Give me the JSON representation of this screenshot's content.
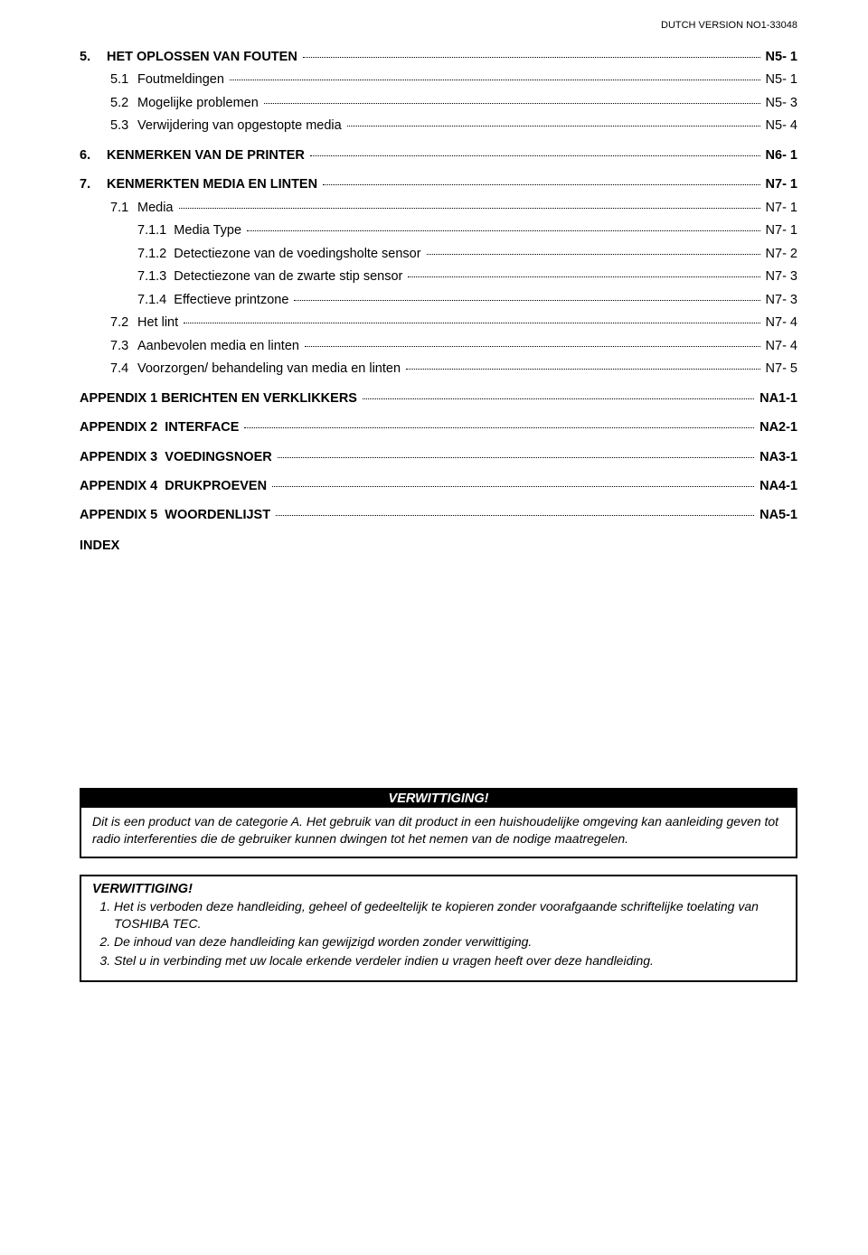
{
  "header_right": "DUTCH VERSION NO1-33048",
  "toc": [
    {
      "level": 0,
      "bold": true,
      "num": "5.",
      "title": "HET OPLOSSEN VAN FOUTEN",
      "page": "N5- 1",
      "gapBefore": true
    },
    {
      "level": 1,
      "bold": false,
      "num": "5.1",
      "title": "Foutmeldingen",
      "page": "N5- 1"
    },
    {
      "level": 1,
      "bold": false,
      "num": "5.2",
      "title": "Mogelijke problemen",
      "page": "N5- 3"
    },
    {
      "level": 1,
      "bold": false,
      "num": "5.3",
      "title": "Verwijdering van opgestopte media",
      "page": "N5- 4"
    },
    {
      "level": 0,
      "bold": true,
      "num": "6.",
      "title": "KENMERKEN VAN DE PRINTER",
      "page": "N6- 1",
      "gapBefore": true
    },
    {
      "level": 0,
      "bold": true,
      "num": "7.",
      "title": "KENMERKTEN MEDIA EN LINTEN",
      "page": "N7- 1",
      "gapBefore": true
    },
    {
      "level": 1,
      "bold": false,
      "num": "7.1",
      "title": "Media",
      "page": "N7- 1"
    },
    {
      "level": 2,
      "bold": false,
      "num": "",
      "title": "7.1.1  Media Type",
      "page": "N7- 1"
    },
    {
      "level": 2,
      "bold": false,
      "num": "",
      "title": "7.1.2  Detectiezone van de voedingsholte sensor",
      "page": "N7- 2"
    },
    {
      "level": 2,
      "bold": false,
      "num": "",
      "title": "7.1.3  Detectiezone van de zwarte stip sensor",
      "page": "N7- 3"
    },
    {
      "level": 2,
      "bold": false,
      "num": "",
      "title": "7.1.4  Effectieve printzone",
      "page": "N7- 3"
    },
    {
      "level": 1,
      "bold": false,
      "num": "7.2",
      "title": "Het lint",
      "page": "N7- 4"
    },
    {
      "level": 1,
      "bold": false,
      "num": "7.3",
      "title": "Aanbevolen media en linten",
      "page": "N7- 4"
    },
    {
      "level": 1,
      "bold": false,
      "num": "7.4",
      "title": "Voorzorgen/ behandeling van media en linten",
      "page": "N7- 5"
    },
    {
      "level": 0,
      "bold": true,
      "num": "",
      "title": "APPENDIX 1 BERICHTEN EN VERKLIKKERS",
      "page": "NA1-1",
      "gapBefore": true
    },
    {
      "level": 0,
      "bold": true,
      "num": "",
      "title": "APPENDIX 2  INTERFACE",
      "page": "NA2-1",
      "gapBefore": true
    },
    {
      "level": 0,
      "bold": true,
      "num": "",
      "title": "APPENDIX 3  VOEDINGSNOER",
      "page": "NA3-1",
      "gapBefore": true
    },
    {
      "level": 0,
      "bold": true,
      "num": "",
      "title": "APPENDIX 4  DRUKPROEVEN",
      "page": "NA4-1",
      "gapBefore": true
    },
    {
      "level": 0,
      "bold": true,
      "num": "",
      "title": "APPENDIX 5  WOORDENLIJST",
      "page": "NA5-1",
      "gapBefore": true
    }
  ],
  "index_label": "INDEX",
  "notice1": {
    "header": "VERWITTIGING!",
    "body": "Dit is een product van de categorie A. Het gebruik van dit product in een huishoudelijke omgeving kan aanleiding geven tot radio interferenties die de gebruiker kunnen dwingen tot het nemen van de nodige maatregelen."
  },
  "notice2": {
    "header": "VERWITTIGING!",
    "items": [
      "Het is verboden deze handleiding, geheel of gedeeltelijk te kopieren zonder voorafgaande schriftelijke toelating van TOSHIBA TEC.",
      "De inhoud van deze handleiding kan gewijzigd worden zonder verwittiging.",
      "Stel u in verbinding met uw locale erkende verdeler indien u vragen heeft over deze handleiding."
    ]
  },
  "colors": {
    "text": "#000000",
    "background": "#ffffff",
    "notice_header_bg": "#000000",
    "notice_header_fg": "#ffffff"
  },
  "fonts": {
    "body_family": "Arial, Helvetica, sans-serif",
    "body_size_pt": 11,
    "header_size_pt": 8
  }
}
